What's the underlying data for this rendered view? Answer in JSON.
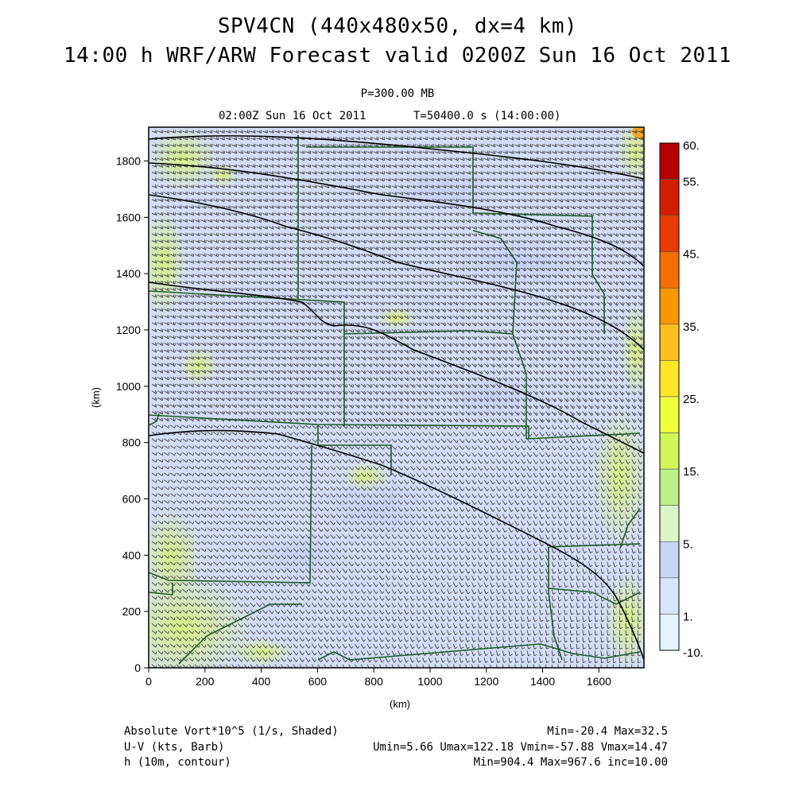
{
  "titles": {
    "line1": "SPV4CN (440x480x50, dx=4 km)",
    "line2": "14:00 h WRF/ARW Forecast valid 0200Z Sun 16 Oct 2011",
    "level": "P=300.00 MB",
    "time": "02:00Z Sun 16 Oct 2011",
    "elapsed": "T=50400.0 s (14:00:00)"
  },
  "axes": {
    "x_label": "(km)",
    "y_label": "(km)",
    "x_ticks": [
      "0",
      "200",
      "400",
      "600",
      "800",
      "1000",
      "1200",
      "1400",
      "1600"
    ],
    "y_ticks": [
      "0",
      "200",
      "400",
      "600",
      "800",
      "1000",
      "1200",
      "1400",
      "1600",
      "1800"
    ],
    "x_range": [
      0,
      1760
    ],
    "y_range": [
      0,
      1920
    ]
  },
  "colorbar": {
    "labels": [
      "60.",
      "55.",
      "45.",
      "35.",
      "25.",
      "15.",
      "5.",
      "1.",
      "-10."
    ],
    "colors": [
      "#b40000",
      "#d21e00",
      "#e83c00",
      "#f56e00",
      "#fa9600",
      "#ffbe1e",
      "#ffe628",
      "#f0ff3c",
      "#d2f55a",
      "#bef08c",
      "#dcf5c8",
      "#c8d7f5",
      "#d7e6fa",
      "#e6f2fc"
    ]
  },
  "legend": {
    "field1": "Absolute Vort*10^5 (1/s, Shaded)",
    "field1_stats": "Min=-20.4 Max=32.5",
    "field2": "U-V (kts, Barb)",
    "field2_stats": "Umin=5.66 Umax=122.18 Vmin=-57.88 Vmax=14.47",
    "field3": "h (10m, contour)",
    "field3_stats": "Min=904.4 Max=967.6 inc=10.00"
  },
  "colors": {
    "background_field": "#d2dcf5",
    "state_lines": "#1e5a28",
    "contours": "#000000",
    "barbs": "#141414"
  }
}
